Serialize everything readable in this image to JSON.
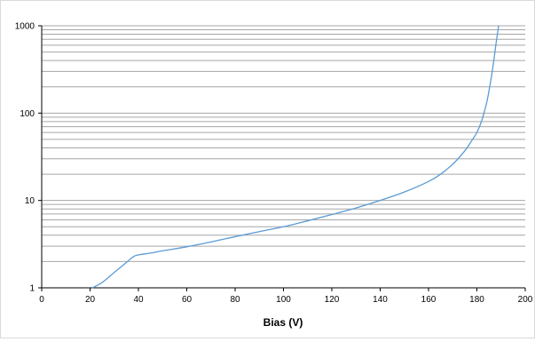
{
  "chart_data": {
    "type": "line",
    "xlabel": "Bias (V)",
    "ylabel": "",
    "title": "",
    "xlim": [
      0,
      200
    ],
    "ylim": [
      1,
      1000
    ],
    "yscale": "log",
    "x_ticks": [
      "0",
      "20",
      "40",
      "60",
      "80",
      "100",
      "120",
      "140",
      "160",
      "180",
      "200"
    ],
    "y_ticks": [
      "1",
      "10",
      "100",
      "1000"
    ],
    "grid": "horizontal minor gridlines on log scale",
    "colors": {
      "series": "#5b9bd5",
      "grid": "#a6a6a6",
      "axis": "#000000",
      "border": "#d9d9d9"
    },
    "series": [
      {
        "x": [
          21,
          25,
          30,
          35,
          38,
          40,
          45,
          50,
          60,
          70,
          80,
          90,
          100,
          110,
          120,
          130,
          140,
          150,
          160,
          165,
          170,
          175,
          178,
          180,
          182,
          184,
          185,
          186,
          187,
          188,
          189
        ],
        "values": [
          1.0,
          1.15,
          1.5,
          1.95,
          2.28,
          2.38,
          2.5,
          2.65,
          2.95,
          3.35,
          3.85,
          4.4,
          5.0,
          5.85,
          6.9,
          8.2,
          10.0,
          12.5,
          16.5,
          20,
          26,
          37,
          49,
          60,
          82,
          130,
          180,
          260,
          400,
          650,
          1000
        ]
      }
    ]
  }
}
